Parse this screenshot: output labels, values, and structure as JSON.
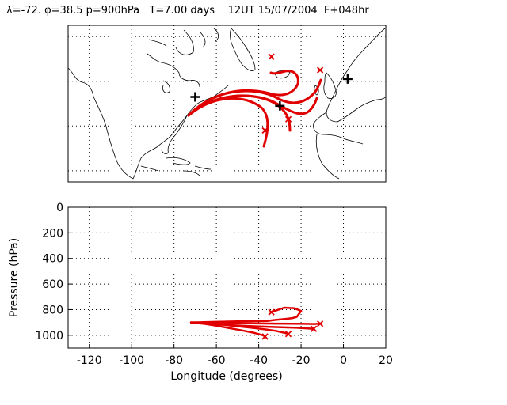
{
  "header": {
    "text": "λ=-72. φ=38.5 p=900hPa   T=7.00 days    12UT 15/07/2004  F+048hr"
  },
  "colors": {
    "trajectory": "#e00000",
    "marker": "#000000",
    "coast": "#000000"
  },
  "chart_data": [
    {
      "type": "scatter",
      "subtype": "map-trajectories",
      "title": "",
      "xlim_lon": [
        -130,
        20
      ],
      "ylim_lat": [
        5,
        75
      ],
      "grid": true,
      "start_marker": {
        "lon": -72,
        "lat": 38.5,
        "symbol": "+"
      },
      "markers_plus": [
        {
          "lon": -70,
          "lat": 43
        },
        {
          "lon": -30,
          "lat": 39
        },
        {
          "lon": 2,
          "lat": 51
        }
      ],
      "trajectory_endpoints_x": [
        {
          "lon": -34,
          "lat": 61
        },
        {
          "lon": -11,
          "lat": 55
        },
        {
          "lon": -26,
          "lat": 33
        },
        {
          "lon": -37,
          "lat": 28
        }
      ]
    },
    {
      "type": "line",
      "subtype": "pressure-longitude-cross-section",
      "xlabel": "Longitude  (degrees)",
      "ylabel": "Pressure  (hPa)",
      "xlim": [
        -130,
        20
      ],
      "ylim": [
        1100,
        0
      ],
      "xticks": [
        -120,
        -100,
        -80,
        -60,
        -40,
        -20,
        0,
        20
      ],
      "yticks": [
        0,
        200,
        400,
        600,
        800,
        1000
      ],
      "series": [
        {
          "x": [
            -72,
            -66,
            -58,
            -50,
            -42,
            -36,
            -32,
            -28,
            -24,
            -22,
            -20,
            -23,
            -28,
            -34
          ],
          "y": [
            900,
            898,
            894,
            892,
            890,
            888,
            880,
            874,
            866,
            856,
            810,
            790,
            785,
            820
          ]
        },
        {
          "x": [
            -72,
            -64,
            -56,
            -48,
            -40,
            -32,
            -24,
            -18,
            -14,
            -11
          ],
          "y": [
            900,
            902,
            904,
            906,
            908,
            909,
            910,
            911,
            912,
            910
          ]
        },
        {
          "x": [
            -72,
            -66,
            -58,
            -50,
            -42,
            -36,
            -32,
            -28,
            -26
          ],
          "y": [
            900,
            906,
            916,
            930,
            944,
            956,
            966,
            980,
            990
          ]
        },
        {
          "x": [
            -72,
            -66,
            -60,
            -54,
            -48,
            -42,
            -38,
            -37
          ],
          "y": [
            900,
            910,
            926,
            944,
            962,
            982,
            1000,
            1010
          ]
        },
        {
          "x": [
            -72,
            -62,
            -52,
            -42,
            -32,
            -22,
            -16,
            -14
          ],
          "y": [
            900,
            914,
            922,
            930,
            936,
            942,
            948,
            950
          ]
        }
      ]
    }
  ]
}
